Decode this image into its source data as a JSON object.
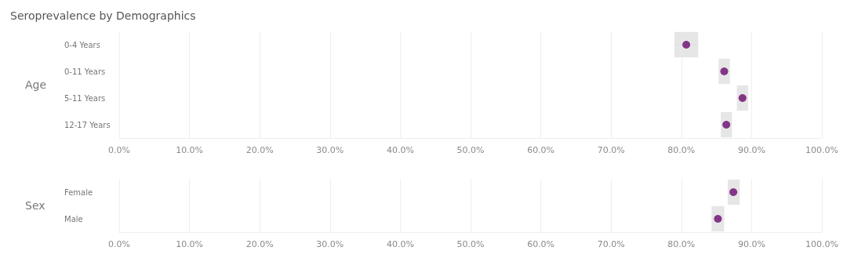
{
  "chart_data": [
    {
      "type": "scatter",
      "title": "Seroprevalence by Demographics",
      "ylabel": "Age",
      "orientation": "horizontal",
      "categories": [
        "0-4 Years",
        "0-11 Years",
        "5-11 Years",
        "12-17 Years"
      ],
      "values": [
        80.7,
        86.1,
        88.7,
        86.4
      ],
      "errors": [
        [
          79.0,
          82.4
        ],
        [
          85.3,
          86.9
        ],
        [
          87.9,
          89.5
        ],
        [
          85.6,
          87.2
        ]
      ],
      "color": "#6a0a6e",
      "marker": "circle",
      "grid": "x",
      "xlim": [
        0,
        100
      ],
      "xticks": [
        {
          "value": 0,
          "label": "0.0%"
        },
        {
          "value": 10,
          "label": "10.0%"
        },
        {
          "value": 20,
          "label": "20.0%"
        },
        {
          "value": 30,
          "label": "30.0%"
        },
        {
          "value": 40,
          "label": "40.0%"
        },
        {
          "value": 50,
          "label": "50.0%"
        },
        {
          "value": 60,
          "label": "60.0%"
        },
        {
          "value": 70,
          "label": "70.0%"
        },
        {
          "value": 80,
          "label": "80.0%"
        },
        {
          "value": 90,
          "label": "90.0%"
        },
        {
          "value": 100,
          "label": "100.0%"
        }
      ]
    },
    {
      "type": "scatter",
      "ylabel": "Sex",
      "orientation": "horizontal",
      "categories": [
        "Female",
        "Male"
      ],
      "values": [
        87.4,
        85.2
      ],
      "errors": [
        [
          86.6,
          88.3
        ],
        [
          84.3,
          86.1
        ]
      ],
      "color": "#6a0a6e",
      "marker": "circle",
      "grid": "x",
      "xlim": [
        0,
        100
      ],
      "xticks": [
        {
          "value": 0,
          "label": "0.0%"
        },
        {
          "value": 10,
          "label": "10.0%"
        },
        {
          "value": 20,
          "label": "20.0%"
        },
        {
          "value": 30,
          "label": "30.0%"
        },
        {
          "value": 40,
          "label": "40.0%"
        },
        {
          "value": 50,
          "label": "50.0%"
        },
        {
          "value": 60,
          "label": "60.0%"
        },
        {
          "value": 70,
          "label": "70.0%"
        },
        {
          "value": 80,
          "label": "80.0%"
        },
        {
          "value": 90,
          "label": "90.0%"
        },
        {
          "value": 100,
          "label": "100.0%"
        }
      ]
    }
  ]
}
